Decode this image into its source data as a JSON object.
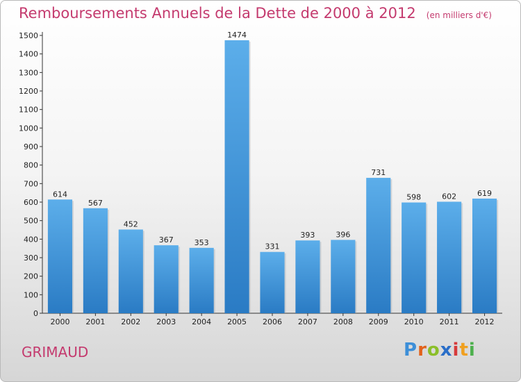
{
  "chart_data": {
    "type": "bar",
    "title": "Remboursements Annuels de la Dette de 2000 à 2012",
    "subtitle": "(en milliers d'€)",
    "categories": [
      "2000",
      "2001",
      "2002",
      "2003",
      "2004",
      "2005",
      "2006",
      "2007",
      "2008",
      "2009",
      "2010",
      "2011",
      "2012"
    ],
    "values": [
      614,
      567,
      452,
      367,
      353,
      1474,
      331,
      393,
      396,
      731,
      598,
      602,
      619
    ],
    "ylim": [
      0,
      1500
    ],
    "yticks": [
      0,
      100,
      200,
      300,
      400,
      500,
      600,
      700,
      800,
      900,
      1000,
      1100,
      1200,
      1300,
      1400,
      1500
    ],
    "grid": false,
    "bar_color": "#4a9ee0"
  },
  "footer": {
    "commune": "GRIMAUD",
    "logo_letters": [
      "P",
      "r",
      "o",
      "x",
      "i",
      "t",
      "i"
    ],
    "logo_colors": [
      "#3d8fd8",
      "#e2621b",
      "#8bbf2a",
      "#2a6ec8",
      "#d63b3b",
      "#f0a020",
      "#4db04d"
    ]
  }
}
